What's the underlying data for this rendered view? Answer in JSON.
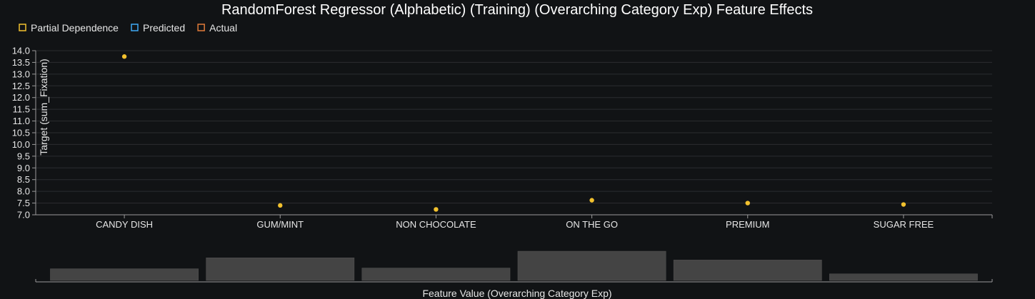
{
  "chart_data": {
    "type": "scatter",
    "title": "RandomForest Regressor (Alphabetic) (Training) (Overarching Category Exp) Feature Effects",
    "legend": {
      "placement": "top-left",
      "entries": [
        {
          "name": "Partial Dependence",
          "color": "#f2c12e"
        },
        {
          "name": "Predicted",
          "color": "#3fa9f5"
        },
        {
          "name": "Actual",
          "color": "#e07b39"
        }
      ]
    },
    "ylabel": "Target (sum_Fixation)",
    "xlabel": "Feature Value (Overarching Category Exp)",
    "ylim": [
      7.0,
      14.0
    ],
    "yticks": [
      "7.0",
      "7.5",
      "8.0",
      "8.5",
      "9.0",
      "9.5",
      "10.0",
      "10.5",
      "11.0",
      "11.5",
      "12.0",
      "12.5",
      "13.0",
      "13.5",
      "14.0"
    ],
    "grid": true,
    "categories": [
      "CANDY DISH",
      "GUM/MINT",
      "NON CHOCOLATE",
      "ON THE GO",
      "PREMIUM",
      "SUGAR FREE"
    ],
    "series": [
      {
        "name": "Partial Dependence",
        "values": [
          13.75,
          7.4,
          7.23,
          7.62,
          7.5,
          7.44
        ]
      }
    ],
    "histogram": {
      "values": [
        16,
        31,
        17,
        40,
        28,
        9
      ],
      "max": 42
    },
    "colors": {
      "background": "#111315",
      "grid": "#2b2d30",
      "axis": "#9a9a9a",
      "bar": "#444444",
      "point": "#f2c12e"
    }
  }
}
